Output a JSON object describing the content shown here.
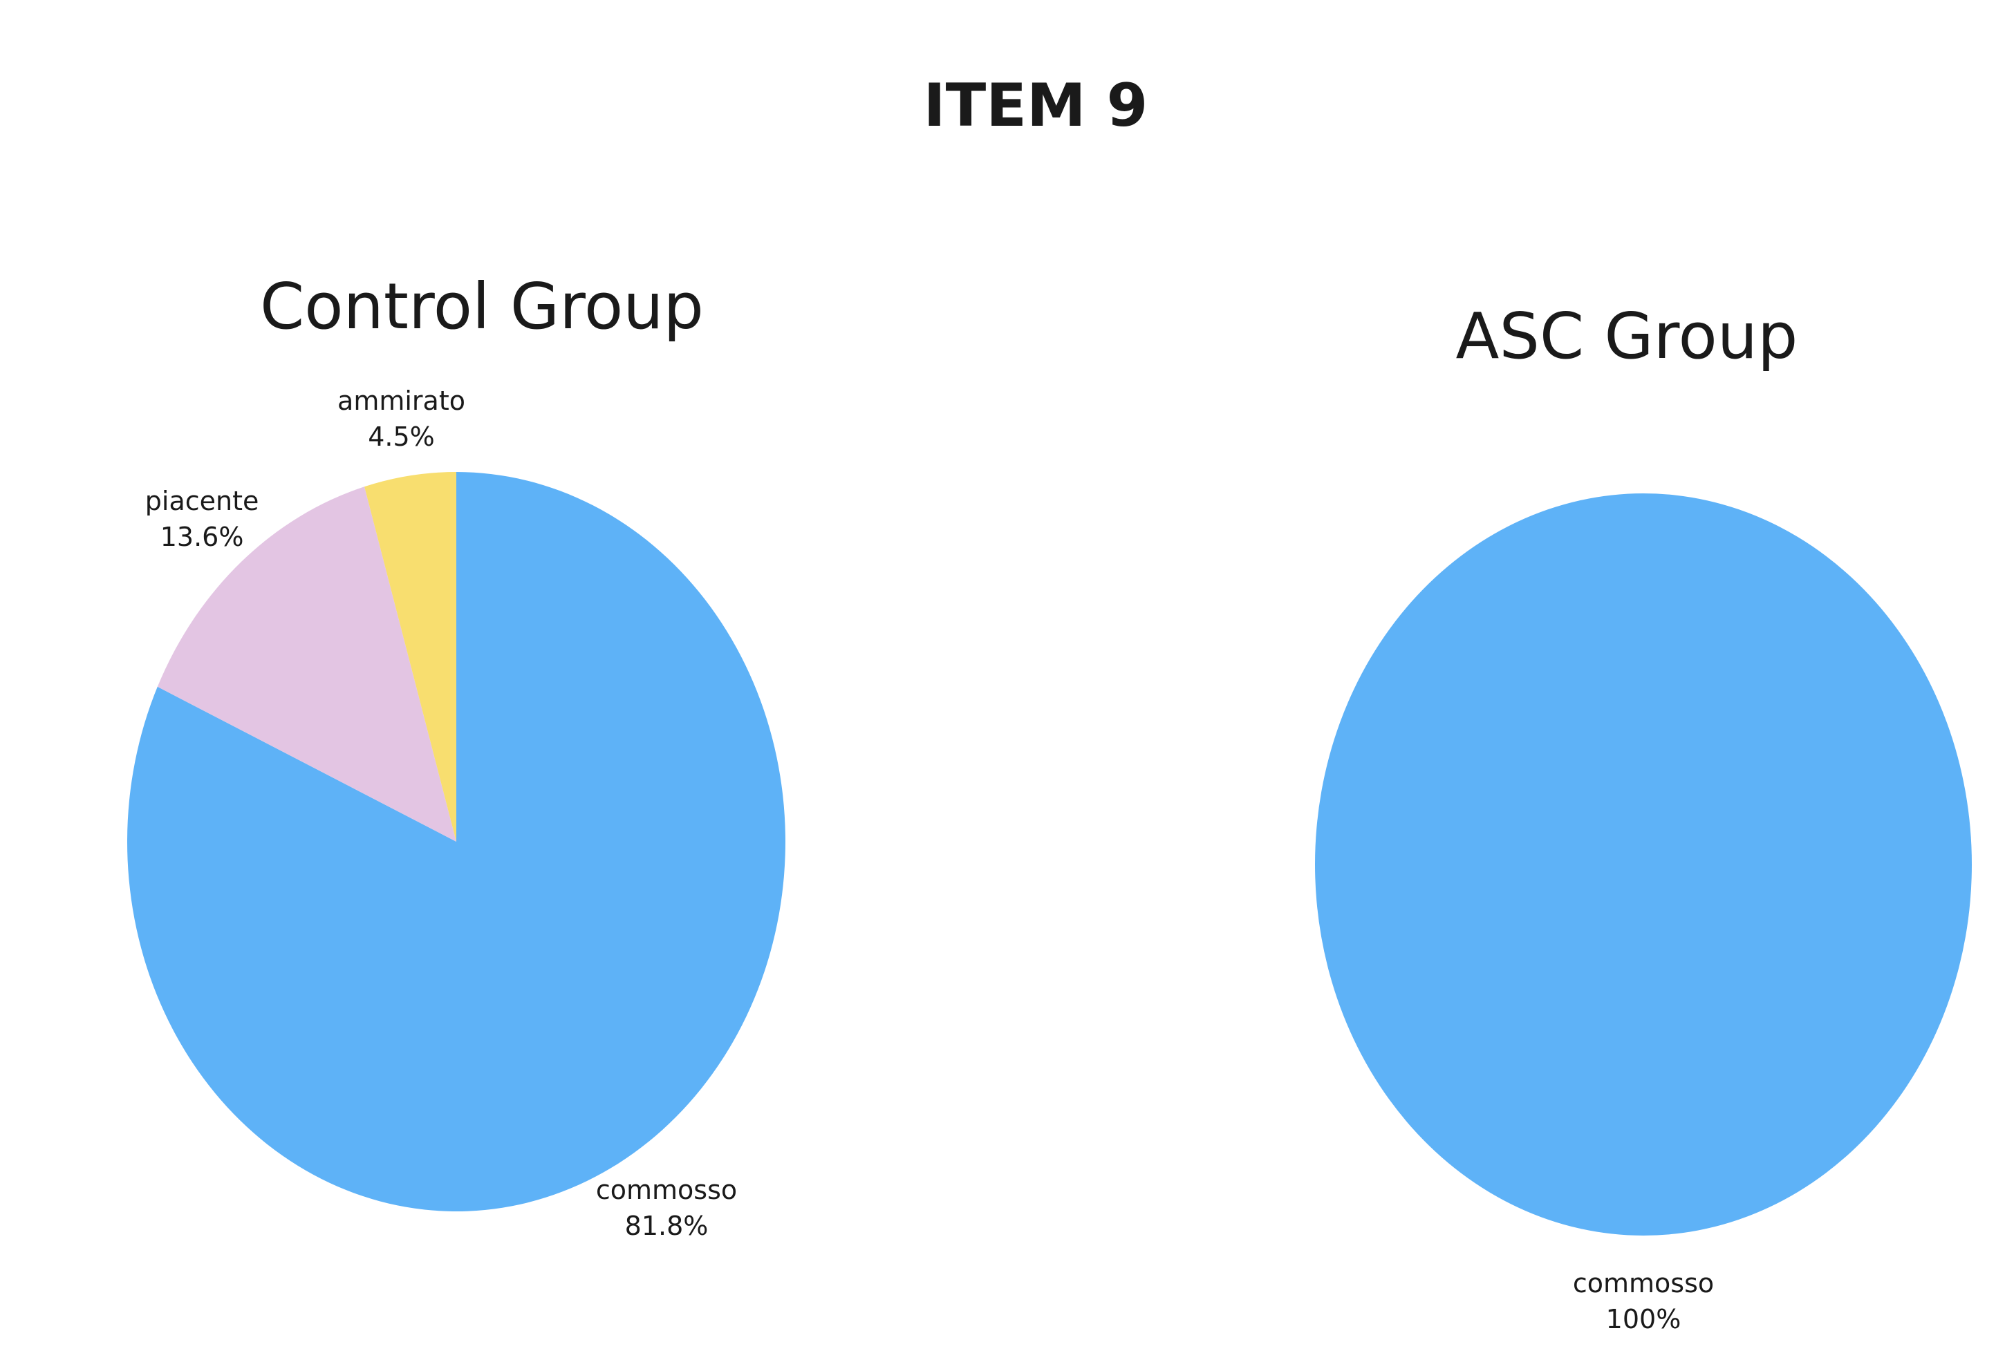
{
  "title": "ITEM 9",
  "chart_data": [
    {
      "type": "pie",
      "title": "Control Group",
      "slices": [
        {
          "label": "commosso",
          "value": 81.8,
          "display": "81.8%",
          "color": "#5eb2f7"
        },
        {
          "label": "piacente",
          "value": 13.6,
          "display": "13.6%",
          "color": "#e3c5e3"
        },
        {
          "label": "ammirato",
          "value": 4.5,
          "display": "4.5%",
          "color": "#f8de6f"
        }
      ]
    },
    {
      "type": "pie",
      "title": "ASC Group",
      "slices": [
        {
          "label": "commosso",
          "value": 100,
          "display": "100%",
          "color": "#5eb2f7"
        }
      ]
    }
  ]
}
